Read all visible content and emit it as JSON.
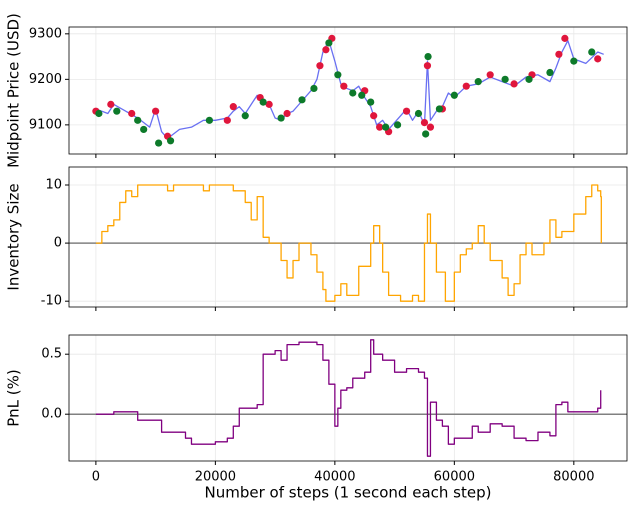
{
  "chart_data": [
    {
      "type": "line",
      "ylabel": "Midpoint Price (USD)",
      "xlim": [
        -4500,
        88900
      ],
      "ylim": [
        9036,
        9315
      ],
      "yticks": [
        9100,
        9200,
        9300
      ],
      "grid": true,
      "series": [
        {
          "color": "#4f57f0",
          "drawstyle": "default",
          "x": [
            0,
            2000,
            3000,
            5000,
            7000,
            9000,
            10000,
            11000,
            12000,
            14000,
            16000,
            18000,
            20000,
            22000,
            23000,
            24000,
            25000,
            26000,
            27000,
            28000,
            29000,
            30000,
            31000,
            32000,
            33000,
            34000,
            36000,
            37000,
            38000,
            39000,
            40000,
            41000,
            42000,
            43000,
            44000,
            45000,
            46000,
            47000,
            48000,
            49000,
            50000,
            51000,
            52000,
            53000,
            54000,
            55000,
            55500,
            56000,
            57000,
            58000,
            59000,
            60000,
            62000,
            64000,
            66000,
            68000,
            70000,
            72000,
            74000,
            76000,
            77000,
            78000,
            79000,
            80000,
            82000,
            84000,
            85000
          ],
          "values": [
            9135,
            9125,
            9145,
            9130,
            9115,
            9095,
            9135,
            9085,
            9070,
            9090,
            9095,
            9110,
            9110,
            9115,
            9130,
            9140,
            9125,
            9145,
            9165,
            9150,
            9145,
            9115,
            9110,
            9125,
            9130,
            9145,
            9175,
            9200,
            9260,
            9285,
            9240,
            9190,
            9180,
            9175,
            9185,
            9160,
            9140,
            9100,
            9110,
            9090,
            9105,
            9120,
            9135,
            9110,
            9130,
            9100,
            9240,
            9110,
            9130,
            9140,
            9170,
            9160,
            9185,
            9190,
            9205,
            9195,
            9185,
            9205,
            9210,
            9195,
            9225,
            9260,
            9285,
            9245,
            9235,
            9260,
            9255
          ]
        },
        {
          "color": "#e0163c",
          "mode": "markers",
          "x": [
            0,
            2500,
            6000,
            10000,
            12000,
            22000,
            23000,
            27500,
            29000,
            32000,
            37500,
            38500,
            39500,
            41500,
            45000,
            46500,
            47500,
            49000,
            52000,
            55000,
            55500,
            56000,
            58000,
            62000,
            66000,
            70000,
            73000,
            77500,
            78500,
            84000
          ],
          "values": [
            9130,
            9145,
            9125,
            9130,
            9075,
            9110,
            9140,
            9160,
            9145,
            9125,
            9230,
            9265,
            9290,
            9185,
            9175,
            9120,
            9095,
            9085,
            9130,
            9105,
            9230,
            9095,
            9135,
            9185,
            9210,
            9190,
            9210,
            9255,
            9290,
            9245
          ]
        },
        {
          "color": "#0d7a2a",
          "mode": "markers",
          "x": [
            500,
            3500,
            7000,
            8000,
            10500,
            12500,
            19000,
            25000,
            28000,
            31000,
            34500,
            36500,
            39000,
            40500,
            43000,
            44500,
            46000,
            48500,
            50500,
            54000,
            55200,
            55600,
            57500,
            60000,
            64000,
            68500,
            72500,
            76000,
            80000,
            83000
          ],
          "values": [
            9125,
            9130,
            9110,
            9090,
            9060,
            9065,
            9110,
            9120,
            9150,
            9115,
            9155,
            9180,
            9280,
            9210,
            9170,
            9165,
            9150,
            9095,
            9100,
            9125,
            9080,
            9250,
            9135,
            9165,
            9195,
            9200,
            9200,
            9215,
            9240,
            9260
          ]
        }
      ]
    },
    {
      "type": "line",
      "ylabel": "Inventory Size",
      "xlim": [
        -4500,
        88900
      ],
      "ylim": [
        -11,
        13.1
      ],
      "yticks": [
        -10,
        0,
        10
      ],
      "grid": true,
      "hline": 0,
      "hline_color": "#808080",
      "series": [
        {
          "color": "#ffa500",
          "drawstyle": "steps",
          "x": [
            0,
            1000,
            2000,
            3000,
            4000,
            5000,
            6000,
            7000,
            12000,
            13000,
            18000,
            19000,
            22000,
            23000,
            25000,
            26000,
            27000,
            28000,
            29000,
            31000,
            32000,
            33000,
            34000,
            36000,
            37000,
            38000,
            38500,
            40000,
            41000,
            42000,
            44000,
            46000,
            46500,
            47500,
            48000,
            49000,
            51000,
            53000,
            54000,
            55000,
            55500,
            56000,
            57000,
            58500,
            60000,
            61000,
            62000,
            63000,
            64000,
            65000,
            66000,
            68000,
            69000,
            70000,
            71000,
            72000,
            73000,
            75000,
            76000,
            77000,
            78000,
            80000,
            82000,
            83000,
            84000,
            84500,
            84600
          ],
          "values": [
            0,
            2,
            3,
            4,
            7,
            9,
            8,
            10,
            9,
            10,
            9,
            10,
            10,
            9,
            7,
            4,
            8,
            1,
            0,
            -3,
            -6,
            -3,
            0,
            -2,
            -5,
            -8,
            -10,
            -9,
            -7,
            -9,
            -4,
            0,
            3,
            0,
            -5,
            -9,
            -10,
            -9,
            -10,
            0,
            5,
            0,
            -5,
            -10,
            -5,
            -2,
            -1,
            0,
            3,
            0,
            -3,
            -6,
            -9,
            -7,
            -2,
            0,
            -2,
            0,
            4,
            1,
            2,
            5,
            8,
            10,
            9,
            8,
            0
          ]
        }
      ]
    },
    {
      "type": "line",
      "ylabel": "PnL (%)",
      "xlabel": "Number of steps (1 second each step)",
      "xlim": [
        -4500,
        88900
      ],
      "ylim": [
        -0.39,
        0.66
      ],
      "yticks": [
        {
          "value": 0,
          "label": "0.0"
        },
        {
          "value": 0.5,
          "label": "0.5"
        }
      ],
      "xticks": [
        0,
        20000,
        40000,
        60000,
        80000
      ],
      "grid": true,
      "hline": 0,
      "hline_color": "#808080",
      "series": [
        {
          "color": "#800080",
          "drawstyle": "steps",
          "x": [
            0,
            2000,
            3000,
            6000,
            7000,
            10000,
            11000,
            15000,
            16000,
            20000,
            22000,
            23000,
            24000,
            27000,
            28000,
            30000,
            31000,
            32000,
            34000,
            37000,
            38000,
            39000,
            40000,
            40500,
            41000,
            42000,
            43000,
            45000,
            46000,
            46500,
            48000,
            50000,
            52000,
            54000,
            55000,
            55500,
            56000,
            57000,
            58000,
            59000,
            60000,
            62000,
            63000,
            64000,
            66000,
            68000,
            70000,
            72000,
            74000,
            76000,
            77000,
            78000,
            79000,
            83000,
            84000,
            84500
          ],
          "values": [
            0,
            0,
            0.02,
            0.02,
            -0.05,
            -0.05,
            -0.15,
            -0.2,
            -0.25,
            -0.23,
            -0.2,
            -0.1,
            0.05,
            0.08,
            0.5,
            0.53,
            0.45,
            0.58,
            0.6,
            0.58,
            0.45,
            0.25,
            -0.1,
            0.05,
            0.2,
            0.22,
            0.3,
            0.35,
            0.62,
            0.5,
            0.45,
            0.35,
            0.38,
            0.35,
            0.3,
            -0.35,
            0.1,
            -0.05,
            -0.1,
            -0.25,
            -0.2,
            -0.2,
            -0.1,
            -0.15,
            -0.08,
            -0.1,
            -0.2,
            -0.22,
            -0.15,
            -0.18,
            0.08,
            0.1,
            0.02,
            0.02,
            0.05,
            0.2
          ]
        }
      ]
    }
  ]
}
